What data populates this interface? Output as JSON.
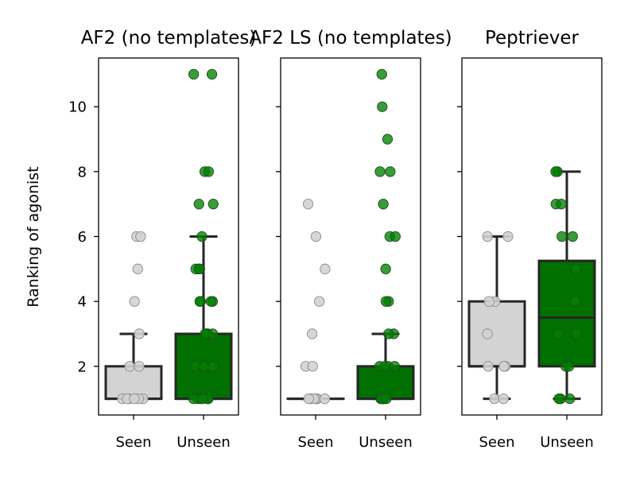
{
  "figure": {
    "ylabel": "Ranking of agonist",
    "yticks": [
      2,
      4,
      6,
      8,
      10
    ],
    "ylim": [
      0.5,
      11.5
    ]
  },
  "chart_data": [
    {
      "type": "box",
      "title": "AF2 (no templates)",
      "categories": [
        "Seen",
        "Unseen"
      ],
      "colors": [
        "#d3d3d3",
        "#007000"
      ],
      "point_colors": [
        "#d3d3d3",
        "#008000"
      ],
      "box_stats": [
        {
          "whislo": 1,
          "q1": 1,
          "median": 1,
          "q3": 2,
          "whishi": 3
        },
        {
          "whislo": 1,
          "q1": 1,
          "median": 1,
          "q3": 3,
          "whishi": 6
        }
      ],
      "points": [
        [
          1,
          1,
          1,
          1,
          1,
          1,
          2,
          2,
          3,
          4,
          5,
          6,
          6
        ],
        [
          1,
          1,
          1,
          1,
          1,
          1,
          1,
          2,
          2,
          2,
          2,
          2,
          3,
          3,
          3,
          3,
          4,
          4,
          4,
          4,
          5,
          5,
          5,
          6,
          7,
          7,
          8,
          8,
          11,
          11
        ]
      ]
    },
    {
      "type": "box",
      "title": "AF2 LS (no templates)",
      "categories": [
        "Seen",
        "Unseen"
      ],
      "colors": [
        "#d3d3d3",
        "#007000"
      ],
      "point_colors": [
        "#d3d3d3",
        "#008000"
      ],
      "box_stats": [
        {
          "whislo": 1,
          "q1": 1,
          "median": 1,
          "q3": 1,
          "whishi": 1
        },
        {
          "whislo": 1,
          "q1": 1,
          "median": 1,
          "q3": 2,
          "whishi": 3
        }
      ],
      "points": [
        [
          1,
          1,
          1,
          1,
          1,
          1,
          2,
          2,
          3,
          4,
          5,
          6,
          7
        ],
        [
          1,
          1,
          1,
          1,
          1,
          1,
          2,
          2,
          2,
          2,
          3,
          3,
          4,
          4,
          5,
          6,
          6,
          7,
          8,
          8,
          9,
          10,
          11
        ]
      ]
    },
    {
      "type": "box",
      "title": "Peptriever",
      "categories": [
        "Seen",
        "Unseen"
      ],
      "colors": [
        "#d3d3d3",
        "#007000"
      ],
      "point_colors": [
        "#d3d3d3",
        "#008000"
      ],
      "box_stats": [
        {
          "whislo": 1,
          "q1": 2,
          "median": 2,
          "q3": 4,
          "whishi": 6
        },
        {
          "whislo": 1,
          "q1": 2,
          "median": 3.5,
          "q3": 5.25,
          "whishi": 8
        }
      ],
      "points": [
        [
          1,
          1,
          2,
          2,
          2,
          3,
          4,
          4,
          6,
          6
        ],
        [
          1,
          1,
          1,
          2,
          2,
          3,
          3,
          4,
          4,
          5,
          5,
          6,
          6,
          7,
          7,
          8,
          8
        ]
      ]
    }
  ]
}
